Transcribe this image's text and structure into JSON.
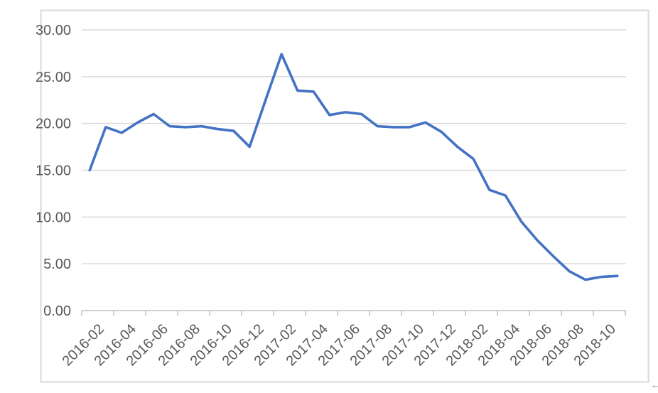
{
  "decorations": {
    "back_arrow": "←"
  },
  "chart_data": {
    "type": "line",
    "title": "",
    "xlabel": "",
    "ylabel": "",
    "x": [
      "2016-02",
      "2016-03",
      "2016-04",
      "2016-05",
      "2016-06",
      "2016-07",
      "2016-08",
      "2016-09",
      "2016-10",
      "2016-11",
      "2016-12",
      "2017-01",
      "2017-02",
      "2017-03",
      "2017-04",
      "2017-05",
      "2017-06",
      "2017-07",
      "2017-08",
      "2017-09",
      "2017-10",
      "2017-11",
      "2017-12",
      "2018-01",
      "2018-02",
      "2018-03",
      "2018-04",
      "2018-05",
      "2018-06",
      "2018-07",
      "2018-08",
      "2018-09",
      "2018-10",
      "2018-11"
    ],
    "series": [
      {
        "name": "value",
        "values": [
          15.0,
          19.6,
          19.0,
          20.1,
          21.0,
          19.7,
          19.6,
          19.7,
          19.4,
          19.2,
          17.5,
          22.5,
          27.4,
          23.5,
          23.4,
          20.9,
          21.2,
          21.0,
          19.7,
          19.6,
          19.6,
          20.1,
          19.1,
          17.5,
          16.2,
          12.9,
          12.3,
          9.5,
          7.5,
          5.8,
          4.2,
          3.3,
          3.6,
          3.7
        ]
      }
    ],
    "ylim": [
      0,
      30
    ],
    "y_step": 5,
    "y_tick_labels": [
      "0.00",
      "5.00",
      "10.00",
      "15.00",
      "20.00",
      "25.00",
      "30.00"
    ],
    "x_tick_labels": [
      "2016-02",
      "2016-04",
      "2016-06",
      "2016-08",
      "2016-10",
      "2016-12",
      "2017-02",
      "2017-04",
      "2017-06",
      "2017-08",
      "2017-10",
      "2017-12",
      "2018-02",
      "2018-04",
      "2018-06",
      "2018-08",
      "2018-10"
    ],
    "grid": true,
    "legend_position": "none",
    "colors": {
      "line": "#4472C4",
      "grid": "#d9d9d9",
      "axis": "#bfbfbf",
      "tick_label": "#595959",
      "chart_border": "#d9d9d9",
      "background": "#ffffff"
    }
  }
}
